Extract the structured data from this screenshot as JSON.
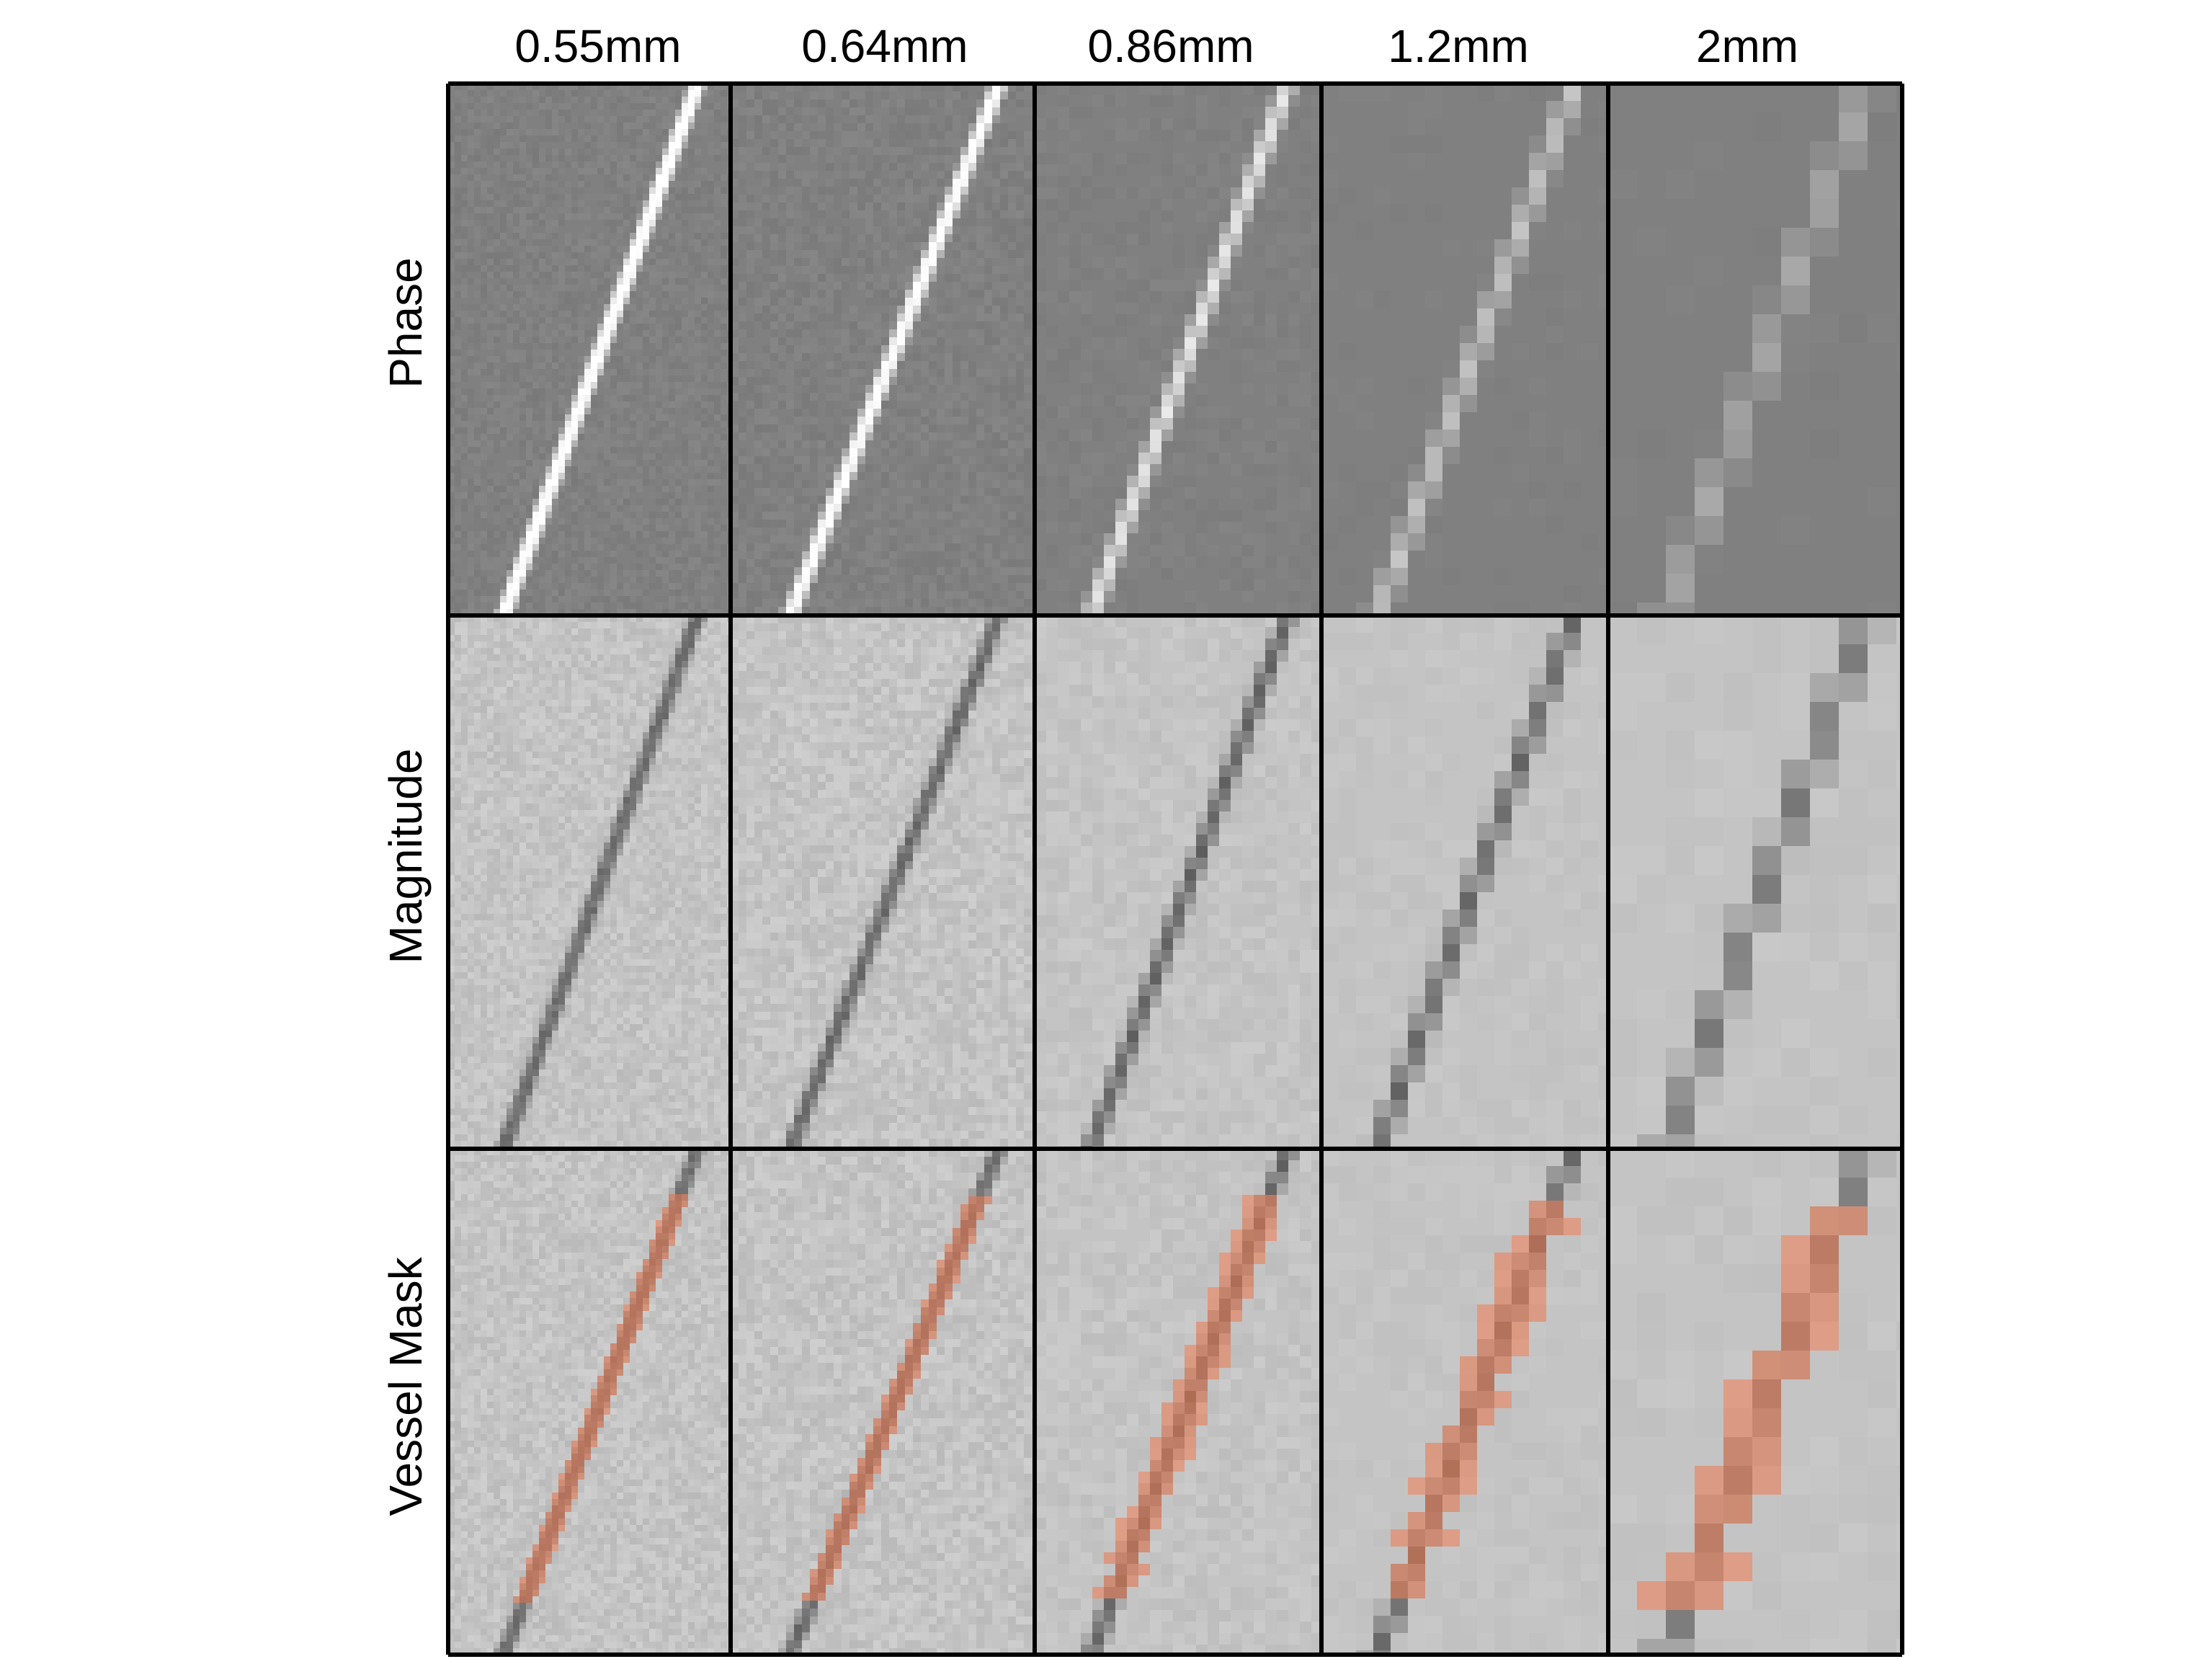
{
  "columns": [
    {
      "label": "0.55mm",
      "pixel_mm": 0.55
    },
    {
      "label": "0.64mm",
      "pixel_mm": 0.64
    },
    {
      "label": "0.86mm",
      "pixel_mm": 0.86
    },
    {
      "label": "1.2mm",
      "pixel_mm": 1.2
    },
    {
      "label": "2mm",
      "pixel_mm": 2.0
    }
  ],
  "rows": [
    {
      "label": "Phase",
      "kind": "phase"
    },
    {
      "label": "Magnitude",
      "kind": "magnitude"
    },
    {
      "label": "Vessel Mask",
      "kind": "mask"
    }
  ],
  "colors": {
    "phase_background": "#808080",
    "phase_vessel": "#ffffff",
    "magnitude_background": "#c4c4c4",
    "magnitude_vessel": "#5a5a5a",
    "mask_overlay": "#f07a50",
    "grid_border": "#000000"
  }
}
